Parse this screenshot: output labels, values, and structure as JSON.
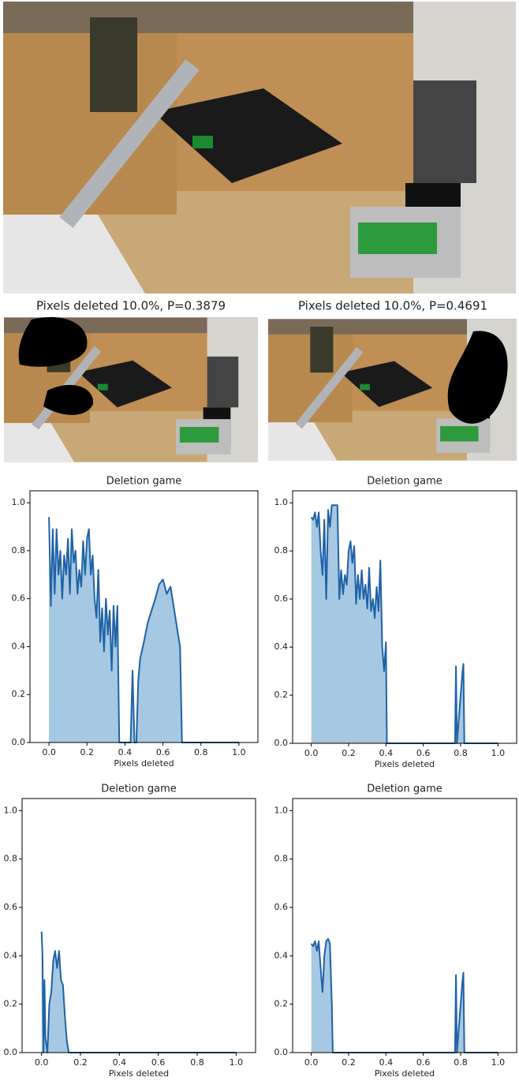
{
  "captions": [
    "Pixels deleted 10.0%, P=0.3879",
    "Pixels deleted 10.0%, P=0.4691"
  ],
  "chart_data": [
    {
      "type": "area",
      "title": "Deletion game",
      "xlabel": "Pixels deleted",
      "color": "#1f62a6",
      "fill_color": "#a6c8e2",
      "xlim": [
        -0.1,
        1.1
      ],
      "ylim": [
        0,
        1.05
      ],
      "xticks": [
        {
          "value": 0,
          "label": "0.0"
        },
        {
          "value": 0.2,
          "label": "0.2"
        },
        {
          "value": 0.4,
          "label": "0.4"
        },
        {
          "value": 0.6,
          "label": "0.6"
        },
        {
          "value": 0.8,
          "label": "0.8"
        },
        {
          "value": 1,
          "label": "1.0"
        }
      ],
      "yticks": [
        {
          "value": 0,
          "label": "0.0"
        },
        {
          "value": 0.2,
          "label": "0.2"
        },
        {
          "value": 0.4,
          "label": "0.4"
        },
        {
          "value": 0.6,
          "label": "0.6"
        },
        {
          "value": 0.8,
          "label": "0.8"
        },
        {
          "value": 1,
          "label": "1.0"
        }
      ],
      "x": [
        0,
        0.01,
        0.02,
        0.03,
        0.04,
        0.05,
        0.06,
        0.07,
        0.08,
        0.09,
        0.1,
        0.11,
        0.12,
        0.13,
        0.14,
        0.15,
        0.16,
        0.17,
        0.18,
        0.19,
        0.2,
        0.21,
        0.22,
        0.23,
        0.24,
        0.25,
        0.26,
        0.27,
        0.28,
        0.29,
        0.3,
        0.31,
        0.32,
        0.33,
        0.34,
        0.35,
        0.36,
        0.37,
        0.43,
        0.44,
        0.45,
        0.46,
        0.47,
        0.48,
        0.5,
        0.52,
        0.54,
        0.56,
        0.58,
        0.6,
        0.62,
        0.64,
        0.66,
        0.68,
        0.69,
        0.7,
        1.0
      ],
      "values": [
        0.94,
        0.57,
        0.89,
        0.62,
        0.89,
        0.7,
        0.8,
        0.6,
        0.78,
        0.7,
        0.85,
        0.62,
        0.89,
        0.75,
        0.8,
        0.62,
        0.72,
        0.65,
        0.84,
        0.7,
        0.85,
        0.89,
        0.7,
        0.78,
        0.6,
        0.52,
        0.72,
        0.42,
        0.56,
        0.38,
        0.6,
        0.45,
        0.55,
        0.3,
        0.57,
        0.4,
        0.57,
        0,
        0,
        0.3,
        0,
        0,
        0.26,
        0.35,
        0.42,
        0.5,
        0.55,
        0.6,
        0.66,
        0.68,
        0.62,
        0.65,
        0.55,
        0.45,
        0.4,
        0,
        0
      ]
    },
    {
      "type": "area",
      "title": "Deletion game",
      "xlabel": "Pixels deleted",
      "color": "#1f62a6",
      "fill_color": "#a6c8e2",
      "xlim": [
        -0.1,
        1.1
      ],
      "ylim": [
        0,
        1.05
      ],
      "xticks": [
        {
          "value": 0,
          "label": "0.0"
        },
        {
          "value": 0.2,
          "label": "0.2"
        },
        {
          "value": 0.4,
          "label": "0.4"
        },
        {
          "value": 0.6,
          "label": "0.6"
        },
        {
          "value": 0.8,
          "label": "0.8"
        },
        {
          "value": 1,
          "label": "1.0"
        }
      ],
      "yticks": [
        {
          "value": 0,
          "label": "0.0"
        },
        {
          "value": 0.2,
          "label": "0.2"
        },
        {
          "value": 0.4,
          "label": "0.4"
        },
        {
          "value": 0.6,
          "label": "0.6"
        },
        {
          "value": 0.8,
          "label": "0.8"
        },
        {
          "value": 1,
          "label": "1.0"
        }
      ],
      "x": [
        0,
        0.01,
        0.02,
        0.03,
        0.04,
        0.05,
        0.06,
        0.07,
        0.08,
        0.09,
        0.1,
        0.11,
        0.12,
        0.14,
        0.15,
        0.16,
        0.17,
        0.18,
        0.19,
        0.2,
        0.21,
        0.22,
        0.23,
        0.24,
        0.25,
        0.26,
        0.27,
        0.28,
        0.29,
        0.3,
        0.31,
        0.32,
        0.33,
        0.34,
        0.35,
        0.36,
        0.37,
        0.38,
        0.39,
        0.4,
        0.405,
        0.77,
        0.775,
        0.78,
        0.81,
        0.815,
        0.82,
        1.0
      ],
      "values": [
        0.94,
        0.93,
        0.96,
        0.9,
        0.96,
        0.8,
        0.7,
        0.93,
        0.6,
        0.97,
        0.9,
        0.99,
        0.99,
        0.99,
        0.6,
        0.72,
        0.62,
        0.7,
        0.66,
        0.8,
        0.84,
        0.75,
        0.82,
        0.58,
        0.7,
        0.6,
        0.72,
        0.6,
        0.66,
        0.56,
        0.73,
        0.55,
        0.6,
        0.52,
        0.65,
        0.55,
        0.76,
        0.4,
        0.3,
        0.42,
        0,
        0,
        0.32,
        0,
        0.3,
        0.33,
        0,
        0
      ]
    },
    {
      "type": "area",
      "title": "Deletion game",
      "xlabel": "Pixels deleted",
      "color": "#1f62a6",
      "fill_color": "#a6c8e2",
      "xlim": [
        -0.1,
        1.1
      ],
      "ylim": [
        0,
        1.05
      ],
      "xticks": [
        {
          "value": 0,
          "label": "0.0"
        },
        {
          "value": 0.2,
          "label": "0.2"
        },
        {
          "value": 0.4,
          "label": "0.4"
        },
        {
          "value": 0.6,
          "label": "0.6"
        },
        {
          "value": 0.8,
          "label": "0.8"
        },
        {
          "value": 1,
          "label": "1.0"
        }
      ],
      "yticks": [
        {
          "value": 0,
          "label": "0.0"
        },
        {
          "value": 0.2,
          "label": "0.2"
        },
        {
          "value": 0.4,
          "label": "0.4"
        },
        {
          "value": 0.6,
          "label": "0.6"
        },
        {
          "value": 0.8,
          "label": "0.8"
        },
        {
          "value": 1,
          "label": "1.0"
        }
      ],
      "x": [
        0,
        0.005,
        0.01,
        0.015,
        0.02,
        0.03,
        0.04,
        0.05,
        0.06,
        0.07,
        0.08,
        0.09,
        0.1,
        0.11,
        0.12,
        0.13,
        0.14,
        1.0
      ],
      "values": [
        0.5,
        0.4,
        0,
        0.3,
        0.06,
        0,
        0.2,
        0.25,
        0.38,
        0.42,
        0.35,
        0.42,
        0.3,
        0.28,
        0.15,
        0.05,
        0,
        0
      ]
    },
    {
      "type": "area",
      "title": "Deletion game",
      "xlabel": "Pixels deleted",
      "color": "#1f62a6",
      "fill_color": "#a6c8e2",
      "xlim": [
        -0.1,
        1.1
      ],
      "ylim": [
        0,
        1.05
      ],
      "xticks": [
        {
          "value": 0,
          "label": "0.0"
        },
        {
          "value": 0.2,
          "label": "0.2"
        },
        {
          "value": 0.4,
          "label": "0.4"
        },
        {
          "value": 0.6,
          "label": "0.6"
        },
        {
          "value": 0.8,
          "label": "0.8"
        },
        {
          "value": 1,
          "label": "1.0"
        }
      ],
      "yticks": [
        {
          "value": 0,
          "label": "0.0"
        },
        {
          "value": 0.2,
          "label": "0.2"
        },
        {
          "value": 0.4,
          "label": "0.4"
        },
        {
          "value": 0.6,
          "label": "0.6"
        },
        {
          "value": 0.8,
          "label": "0.8"
        },
        {
          "value": 1,
          "label": "1.0"
        }
      ],
      "x": [
        0,
        0.01,
        0.02,
        0.03,
        0.04,
        0.05,
        0.06,
        0.07,
        0.08,
        0.09,
        0.1,
        0.11,
        0.115,
        0.77,
        0.775,
        0.78,
        0.81,
        0.815,
        0.82,
        1.0
      ],
      "values": [
        0.45,
        0.44,
        0.46,
        0.42,
        0.46,
        0.35,
        0.25,
        0.4,
        0.46,
        0.47,
        0.45,
        0.2,
        0,
        0,
        0.32,
        0,
        0.3,
        0.33,
        0,
        0
      ]
    }
  ]
}
